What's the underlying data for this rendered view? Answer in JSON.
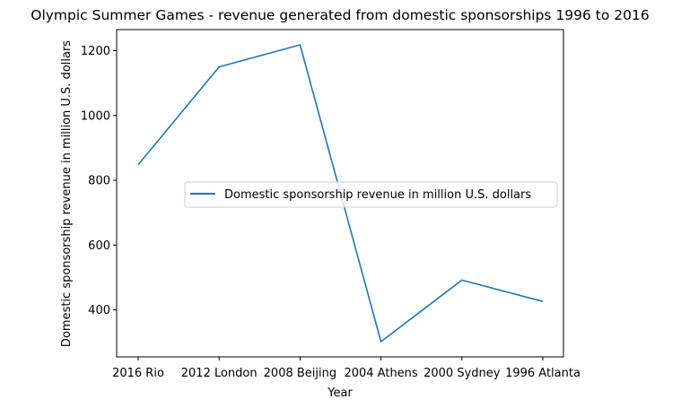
{
  "chart_data": {
    "type": "line",
    "title": "Olympic Summer Games - revenue generated from domestic sponsorships 1996 to 2016",
    "xlabel": "Year",
    "ylabel": "Domestic sponsorship revenue in million U.S. dollars",
    "categories": [
      "2016 Rio",
      "2012 London",
      "2008 Beijing",
      "2004 Athens",
      "2000 Sydney",
      "1996 Atlanta"
    ],
    "series": [
      {
        "name": "Domestic sponsorship revenue in million U.S. dollars",
        "values": [
          848,
          1150,
          1218,
          302,
          492,
          426
        ],
        "color": "#1f77b4"
      }
    ],
    "ylim": [
      255,
      1265
    ],
    "yticks": [
      400,
      600,
      800,
      1000,
      1200
    ],
    "grid": false,
    "legend_position": "center-right"
  }
}
